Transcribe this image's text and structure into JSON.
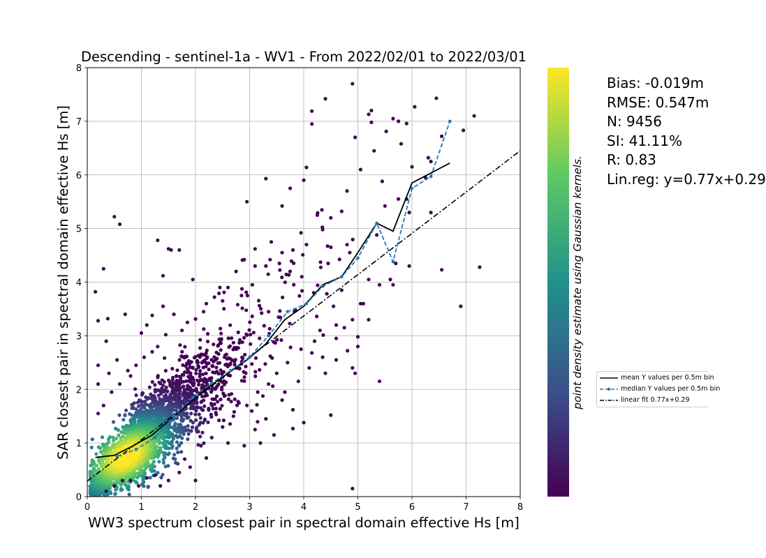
{
  "chart_data": {
    "type": "scatter",
    "title": "Descending - sentinel-1a - WV1 - From 2022/02/01 to 2022/03/01",
    "xlabel": "WW3 spectrum closest pair in spectral domain effective Hs [m]",
    "ylabel": "SAR closest pair in spectral domain effective Hs [m]",
    "xlim": [
      0,
      8
    ],
    "ylim": [
      0,
      8
    ],
    "xticks": [
      "0",
      "1",
      "2",
      "3",
      "4",
      "5",
      "6",
      "7",
      "8"
    ],
    "yticks": [
      "0",
      "1",
      "2",
      "3",
      "4",
      "5",
      "6",
      "7",
      "8"
    ],
    "grid": true,
    "colorbar_label": "point density estimate using Gaussian kernels.",
    "colormap": [
      "#440154",
      "#3b528b",
      "#21918c",
      "#5ec962",
      "#fde725"
    ],
    "stats": [
      "Bias: -0.019m",
      "RMSE: 0.547m",
      "N: 9456",
      "SI: 41.11%",
      "R: 0.83",
      "Lin.reg: y=0.77x+0.29"
    ],
    "legend": {
      "placement": "right, outside plot",
      "entries": [
        {
          "label": "mean Y values per 0.5m bin",
          "style": "solid",
          "color": "#000000"
        },
        {
          "label": "median Y values per 0.5m bin",
          "style": "dashed-marker",
          "color": "#1f77b4"
        },
        {
          "label": "linear fit 0.77x+0.29",
          "style": "dashdot",
          "color": "#000000"
        }
      ]
    },
    "mean_curve": {
      "x": [
        0.15,
        0.5,
        0.85,
        1.2,
        1.55,
        1.9,
        2.25,
        2.6,
        2.95,
        3.3,
        3.65,
        4.0,
        4.35,
        4.7,
        5.0,
        5.35,
        5.65,
        6.0,
        6.7
      ],
      "y": [
        0.73,
        0.77,
        0.95,
        1.15,
        1.45,
        1.75,
        2.05,
        2.3,
        2.55,
        2.85,
        3.3,
        3.55,
        3.95,
        4.1,
        4.55,
        5.1,
        4.95,
        5.85,
        6.22
      ]
    },
    "median_curve": {
      "x": [
        0.55,
        0.9,
        1.25,
        1.6,
        1.95,
        2.3,
        2.65,
        3.0,
        3.35,
        3.7,
        4.05,
        4.35,
        4.7,
        5.0,
        5.35,
        5.65,
        6.0,
        6.35,
        6.7
      ],
      "y": [
        0.75,
        0.88,
        1.1,
        1.5,
        1.85,
        2.12,
        2.35,
        2.6,
        3.0,
        3.45,
        3.6,
        3.92,
        4.1,
        4.45,
        5.1,
        4.38,
        5.75,
        5.97,
        7.0
      ]
    },
    "linear_fit": {
      "slope": 0.77,
      "intercept": 0.29,
      "x_range": [
        0,
        8
      ]
    },
    "outlier_points": [
      [
        0.15,
        3.82
      ],
      [
        0.2,
        2.45
      ],
      [
        0.2,
        1.55
      ],
      [
        0.3,
        4.25
      ],
      [
        0.2,
        2.1
      ],
      [
        0.35,
        2.9
      ],
      [
        0.2,
        3.28
      ],
      [
        0.38,
        3.32
      ],
      [
        0.5,
        5.22
      ],
      [
        0.6,
        5.08
      ],
      [
        0.7,
        3.4
      ],
      [
        0.55,
        2.55
      ],
      [
        0.4,
        2.3
      ],
      [
        0.8,
        2.25
      ],
      [
        1.0,
        3.05
      ],
      [
        1.1,
        3.2
      ],
      [
        1.3,
        4.78
      ],
      [
        1.4,
        3.55
      ],
      [
        1.5,
        4.62
      ],
      [
        1.55,
        4.6
      ],
      [
        1.7,
        4.6
      ],
      [
        1.4,
        4.12
      ],
      [
        1.2,
        3.38
      ],
      [
        1.6,
        3.4
      ],
      [
        1.95,
        4.05
      ],
      [
        2.2,
        3.6
      ],
      [
        2.5,
        3.65
      ],
      [
        2.6,
        3.9
      ],
      [
        2.9,
        4.42
      ],
      [
        2.95,
        5.5
      ],
      [
        3.1,
        4.3
      ],
      [
        3.3,
        5.93
      ],
      [
        3.6,
        5.42
      ],
      [
        3.75,
        5.75
      ],
      [
        4.0,
        5.9
      ],
      [
        4.05,
        6.14
      ],
      [
        4.15,
        6.95
      ],
      [
        4.15,
        7.19
      ],
      [
        4.4,
        7.42
      ],
      [
        4.5,
        5.2
      ],
      [
        4.7,
        5.32
      ],
      [
        4.8,
        5.7
      ],
      [
        4.9,
        7.7
      ],
      [
        4.95,
        6.7
      ],
      [
        5.05,
        6.1
      ],
      [
        5.2,
        7.13
      ],
      [
        5.25,
        7.2
      ],
      [
        5.25,
        6.98
      ],
      [
        5.3,
        6.45
      ],
      [
        5.45,
        5.88
      ],
      [
        5.65,
        7.05
      ],
      [
        5.75,
        7.0
      ],
      [
        5.8,
        6.58
      ],
      [
        5.9,
        6.96
      ],
      [
        6.0,
        6.15
      ],
      [
        6.05,
        7.27
      ],
      [
        6.3,
        6.32
      ],
      [
        6.45,
        7.43
      ],
      [
        6.55,
        6.72
      ],
      [
        6.95,
        6.83
      ],
      [
        7.15,
        7.1
      ],
      [
        6.35,
        5.3
      ],
      [
        7.25,
        4.28
      ],
      [
        6.55,
        4.23
      ],
      [
        6.9,
        3.55
      ],
      [
        5.4,
        2.15
      ],
      [
        4.95,
        2.3
      ],
      [
        4.9,
        2.4
      ],
      [
        4.6,
        2.55
      ],
      [
        4.4,
        2.3
      ],
      [
        4.15,
        2.68
      ],
      [
        5.0,
        2.8
      ],
      [
        5.0,
        2.98
      ],
      [
        5.2,
        3.3
      ],
      [
        4.9,
        0.15
      ],
      [
        4.0,
        1.38
      ],
      [
        3.8,
        1.27
      ],
      [
        3.45,
        1.15
      ],
      [
        3.2,
        1.0
      ],
      [
        3.8,
        1.62
      ],
      [
        4.5,
        1.52
      ],
      [
        3.6,
        1.8
      ],
      [
        4.55,
        3.55
      ],
      [
        4.6,
        3.2
      ],
      [
        4.7,
        3.85
      ],
      [
        5.05,
        3.6
      ],
      [
        5.2,
        4.05
      ],
      [
        5.6,
        4.05
      ],
      [
        5.7,
        4.35
      ],
      [
        5.75,
        5.55
      ],
      [
        5.5,
        5.42
      ],
      [
        5.35,
        4.88
      ],
      [
        5.9,
        5.55
      ],
      [
        5.95,
        5.3
      ],
      [
        6.25,
        5.95
      ],
      [
        6.35,
        6.25
      ],
      [
        4.25,
        5.25
      ],
      [
        4.5,
        4.65
      ],
      [
        4.35,
        4.98
      ],
      [
        3.95,
        4.92
      ],
      [
        3.6,
        4.55
      ],
      [
        3.4,
        4.75
      ],
      [
        3.1,
        4.62
      ],
      [
        2.75,
        4.2
      ],
      [
        2.45,
        3.9
      ],
      [
        2.35,
        3.72
      ],
      [
        2.15,
        3.45
      ],
      [
        1.85,
        3.25
      ],
      [
        1.75,
        3.1
      ],
      [
        1.45,
        3.02
      ],
      [
        1.3,
        2.8
      ],
      [
        2.85,
        3.75
      ],
      [
        3.05,
        3.95
      ],
      [
        3.3,
        4.3
      ],
      [
        3.55,
        4.35
      ],
      [
        3.8,
        4.6
      ],
      [
        4.05,
        4.7
      ],
      [
        4.45,
        4.35
      ],
      [
        4.8,
        4.7
      ],
      [
        4.85,
        4.55
      ],
      [
        4.75,
        3.15
      ],
      [
        4.3,
        3.1
      ],
      [
        4.2,
        2.9
      ],
      [
        3.95,
        2.75
      ],
      [
        3.7,
        2.5
      ],
      [
        3.5,
        2.3
      ],
      [
        3.35,
        2.1
      ],
      [
        3.15,
        1.95
      ],
      [
        2.95,
        1.7
      ],
      [
        2.7,
        1.5
      ],
      [
        2.5,
        1.3
      ],
      [
        2.3,
        1.1
      ],
      [
        2.1,
        0.95
      ],
      [
        2.0,
        0.3
      ],
      [
        1.9,
        0.55
      ],
      [
        1.7,
        0.45
      ],
      [
        1.5,
        0.3
      ],
      [
        1.35,
        0.2
      ],
      [
        1.8,
        0.7
      ],
      [
        2.2,
        0.72
      ],
      [
        2.6,
        1.0
      ],
      [
        2.9,
        0.95
      ],
      [
        3.1,
        1.25
      ],
      [
        3.3,
        1.45
      ],
      [
        3.65,
        1.95
      ],
      [
        3.9,
        2.15
      ],
      [
        4.1,
        2.4
      ],
      [
        4.35,
        2.6
      ],
      [
        4.6,
        2.95
      ],
      [
        4.9,
        3.3
      ],
      [
        5.1,
        3.6
      ],
      [
        5.4,
        3.95
      ],
      [
        5.65,
        3.95
      ],
      [
        5.95,
        4.3
      ],
      [
        0.45,
        1.95
      ],
      [
        0.6,
        2.1
      ],
      [
        0.75,
        2.35
      ],
      [
        0.9,
        2.45
      ],
      [
        1.05,
        2.6
      ],
      [
        1.2,
        2.7
      ],
      [
        0.3,
        1.7
      ],
      [
        0.35,
        0.1
      ],
      [
        0.5,
        0.2
      ],
      [
        0.65,
        0.3
      ],
      [
        0.8,
        0.3
      ],
      [
        0.95,
        0.2
      ],
      [
        1.1,
        0.35
      ],
      [
        1.25,
        0.4
      ]
    ]
  }
}
